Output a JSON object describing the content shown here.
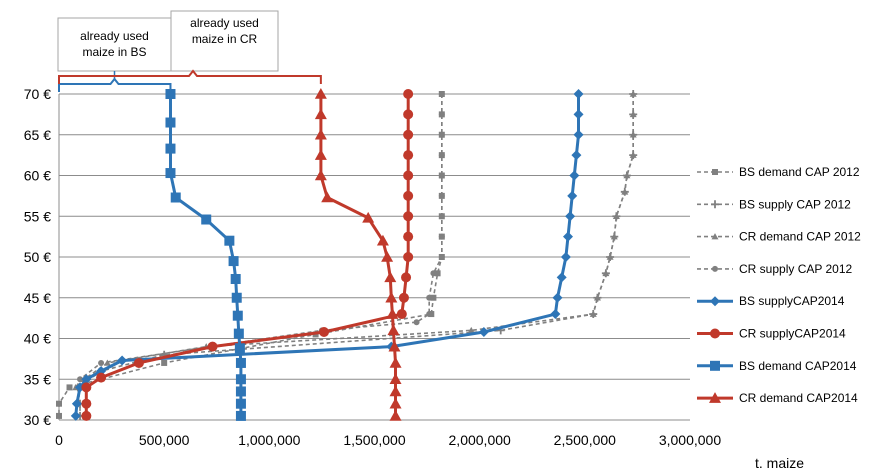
{
  "chart_data": {
    "type": "line",
    "title": "",
    "xlabel": "t. maize",
    "ylabel": "",
    "xlim": [
      0,
      3000000
    ],
    "ylim": [
      30,
      70
    ],
    "x_ticks": [
      0,
      500000,
      1000000,
      1500000,
      2000000,
      2500000,
      3000000
    ],
    "x_tick_labels": [
      "0",
      "500,000",
      "1,000,000",
      "1,500,000",
      "2,000,000",
      "2,500,000",
      "3,000,000"
    ],
    "y_ticks": [
      30,
      35,
      40,
      45,
      50,
      55,
      60,
      65,
      70
    ],
    "y_tick_labels": [
      "30 €",
      "35 €",
      "40 €",
      "45 €",
      "50 €",
      "55 €",
      "60 €",
      "65 €",
      "70 €"
    ],
    "grid": "horizontal",
    "legend_position": "right",
    "annotations": [
      {
        "text_lines": [
          "already used",
          "maize  in BS"
        ],
        "bracket_x": [
          0,
          530000
        ],
        "color": "#2E75B6"
      },
      {
        "text_lines": [
          "already used",
          "maize  in CR"
        ],
        "bracket_x": [
          0,
          1245000
        ],
        "color": "#C0392B"
      }
    ],
    "series": [
      {
        "name": "BS demand CAP 2012",
        "color": "#808080",
        "dashed": true,
        "marker": "square",
        "points": [
          [
            1820000,
            70
          ],
          [
            1820000,
            67.5
          ],
          [
            1820000,
            65
          ],
          [
            1820000,
            62.5
          ],
          [
            1820000,
            60
          ],
          [
            1820000,
            57.5
          ],
          [
            1820000,
            55
          ],
          [
            1820000,
            52.5
          ],
          [
            1820000,
            50
          ],
          [
            1800000,
            48
          ],
          [
            1780000,
            45
          ],
          [
            1770000,
            43
          ],
          [
            1220000,
            40.5
          ],
          [
            500000,
            37
          ],
          [
            50000,
            34
          ],
          [
            0,
            32
          ],
          [
            0,
            30.5
          ]
        ]
      },
      {
        "name": "BS supply CAP 2012",
        "color": "#808080",
        "dashed": true,
        "marker": "cross",
        "points": [
          [
            2730000,
            70
          ],
          [
            2730000,
            67.5
          ],
          [
            2730000,
            65
          ],
          [
            2730000,
            62.5
          ],
          [
            2700000,
            60
          ],
          [
            2690000,
            58
          ],
          [
            2650000,
            55
          ],
          [
            2640000,
            52.5
          ],
          [
            2620000,
            50
          ],
          [
            2600000,
            48
          ],
          [
            2560000,
            45
          ],
          [
            2540000,
            43
          ],
          [
            2100000,
            41
          ],
          [
            500000,
            38
          ],
          [
            200000,
            36
          ],
          [
            90000,
            34
          ],
          [
            100000,
            32
          ],
          [
            100000,
            30.5
          ]
        ]
      },
      {
        "name": "CR demand CAP 2012",
        "color": "#808080",
        "dashed": true,
        "marker": "triangle",
        "points": [
          [
            2730000,
            70
          ],
          [
            2730000,
            67.5
          ],
          [
            2730000,
            65
          ],
          [
            2730000,
            62.5
          ],
          [
            2700000,
            60
          ],
          [
            2690000,
            58
          ],
          [
            2650000,
            55
          ],
          [
            2640000,
            52.5
          ],
          [
            2620000,
            50
          ],
          [
            2600000,
            48
          ],
          [
            2560000,
            45
          ],
          [
            2540000,
            43
          ],
          [
            1960000,
            41
          ],
          [
            700000,
            39
          ],
          [
            230000,
            37
          ],
          [
            120000,
            35
          ],
          [
            80000,
            34
          ]
        ]
      },
      {
        "name": "CR supply CAP 2012",
        "color": "#808080",
        "dashed": true,
        "marker": "circle",
        "points": [
          [
            1820000,
            70
          ],
          [
            1820000,
            67.5
          ],
          [
            1820000,
            65
          ],
          [
            1820000,
            62.5
          ],
          [
            1820000,
            60
          ],
          [
            1820000,
            57.5
          ],
          [
            1820000,
            55
          ],
          [
            1820000,
            52.5
          ],
          [
            1820000,
            50
          ],
          [
            1780000,
            48
          ],
          [
            1760000,
            45
          ],
          [
            1760000,
            43
          ],
          [
            1700000,
            42
          ],
          [
            1250000,
            41
          ],
          [
            720000,
            39
          ],
          [
            200000,
            37
          ],
          [
            100000,
            35
          ]
        ]
      },
      {
        "name": "BS supplyCAP2014",
        "color": "#2E75B6",
        "dashed": false,
        "marker": "diamond",
        "points": [
          [
            2470000,
            70
          ],
          [
            2470000,
            67.5
          ],
          [
            2470000,
            65
          ],
          [
            2460000,
            62.5
          ],
          [
            2450000,
            60
          ],
          [
            2440000,
            57.5
          ],
          [
            2430000,
            55
          ],
          [
            2420000,
            52.5
          ],
          [
            2410000,
            50
          ],
          [
            2390000,
            47.5
          ],
          [
            2370000,
            45
          ],
          [
            2360000,
            43
          ],
          [
            2020000,
            40.8
          ],
          [
            1580000,
            39
          ],
          [
            300000,
            37.3
          ],
          [
            200000,
            36
          ],
          [
            130000,
            35
          ],
          [
            100000,
            34
          ],
          [
            85000,
            32
          ],
          [
            80000,
            30.5
          ]
        ]
      },
      {
        "name": "CR supplyCAP2014",
        "color": "#C0392B",
        "dashed": false,
        "marker": "circle",
        "points": [
          [
            1660000,
            70
          ],
          [
            1660000,
            67.5
          ],
          [
            1660000,
            65
          ],
          [
            1660000,
            62.5
          ],
          [
            1660000,
            60
          ],
          [
            1660000,
            57.5
          ],
          [
            1660000,
            55
          ],
          [
            1660000,
            52.5
          ],
          [
            1660000,
            50
          ],
          [
            1650000,
            47.5
          ],
          [
            1640000,
            45
          ],
          [
            1630000,
            43
          ],
          [
            1260000,
            40.8
          ],
          [
            730000,
            39
          ],
          [
            380000,
            37
          ],
          [
            200000,
            35.2
          ],
          [
            130000,
            34
          ],
          [
            130000,
            32
          ],
          [
            130000,
            30.5
          ]
        ]
      },
      {
        "name": "BS demand CAP2014",
        "color": "#2E75B6",
        "dashed": false,
        "marker": "square",
        "points": [
          [
            530000,
            70
          ],
          [
            530000,
            66.5
          ],
          [
            530000,
            63.3
          ],
          [
            530000,
            60.3
          ],
          [
            555000,
            57.3
          ],
          [
            700000,
            54.6
          ],
          [
            810000,
            52
          ],
          [
            830000,
            49.5
          ],
          [
            840000,
            47.3
          ],
          [
            845000,
            45
          ],
          [
            850000,
            42.8
          ],
          [
            855000,
            40.6
          ],
          [
            860000,
            38.8
          ],
          [
            865000,
            37
          ],
          [
            865000,
            35
          ],
          [
            865000,
            33.5
          ],
          [
            865000,
            32
          ],
          [
            865000,
            30.5
          ]
        ]
      },
      {
        "name": "CR demand CAP2014",
        "color": "#C0392B",
        "dashed": false,
        "marker": "triangle",
        "points": [
          [
            1245000,
            70
          ],
          [
            1245000,
            67.5
          ],
          [
            1245000,
            65
          ],
          [
            1245000,
            62.5
          ],
          [
            1245000,
            60
          ],
          [
            1275000,
            57.3
          ],
          [
            1470000,
            54.8
          ],
          [
            1540000,
            52
          ],
          [
            1560000,
            50
          ],
          [
            1575000,
            47.5
          ],
          [
            1580000,
            45
          ],
          [
            1585000,
            43
          ],
          [
            1590000,
            41
          ],
          [
            1595000,
            39
          ],
          [
            1600000,
            37
          ],
          [
            1600000,
            35
          ],
          [
            1600000,
            33.5
          ],
          [
            1600000,
            32
          ],
          [
            1600000,
            30.5
          ]
        ]
      }
    ]
  }
}
